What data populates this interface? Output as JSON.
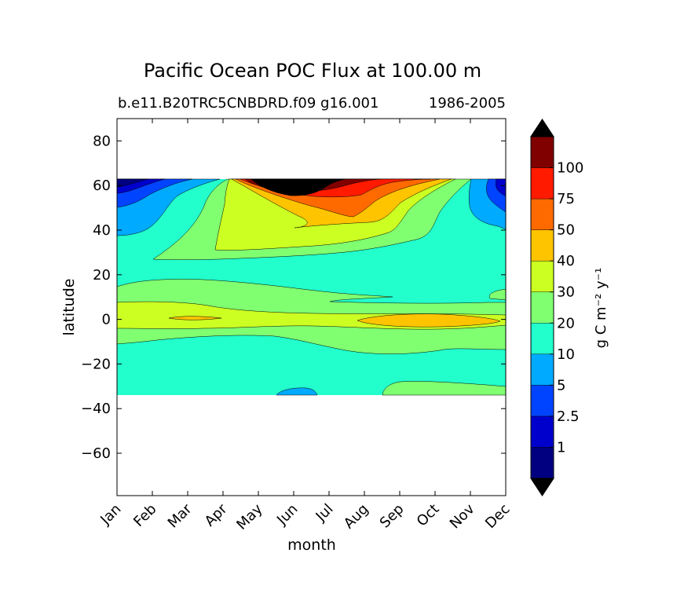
{
  "chart_data": {
    "type": "contourf",
    "title": "Pacific Ocean POC Flux at 100.00 m",
    "subtitle_left": "b.e11.B20TRC5CNBDRD.f09 g16.001",
    "subtitle_right": "1986-2005",
    "xlabel": "month",
    "ylabel": "latitude",
    "x_ticks": [
      "Jan",
      "Feb",
      "Mar",
      "Apr",
      "May",
      "Jun",
      "Jul",
      "Aug",
      "Sep",
      "Oct",
      "Nov",
      "Dec"
    ],
    "xlim": [
      0,
      11
    ],
    "y_ticks": [
      80,
      60,
      40,
      20,
      0,
      -20,
      -40,
      -60
    ],
    "y_tick_labels": [
      "80",
      "60",
      "40",
      "20",
      "0",
      "−20",
      "−40",
      "−60"
    ],
    "ylim": [
      -79,
      90
    ],
    "data_lat_range": [
      -34,
      63
    ],
    "colorbar": {
      "label": "g C m⁻² y⁻¹",
      "levels": [
        1,
        2.5,
        5,
        10,
        20,
        30,
        40,
        50,
        75,
        100
      ],
      "tick_labels": [
        "1",
        "2.5",
        "5",
        "10",
        "20",
        "30",
        "40",
        "50",
        "75",
        "100"
      ],
      "colors": [
        "#000080",
        "#0000cd",
        "#0044ff",
        "#00aaff",
        "#22ffcc",
        "#80ff70",
        "#ccff22",
        "#ffc400",
        "#ff6a00",
        "#ff1a00",
        "#800000"
      ],
      "extend_low_color": "#000000",
      "extend_high_color": "#000000"
    },
    "regions": [
      {
        "name": "tropics-20",
        "lon_months": [
          0,
          11
        ],
        "lat": [
          -5,
          17
        ],
        "level": 20
      },
      {
        "name": "equatorial-30",
        "lon_months": [
          0,
          11
        ],
        "lat": [
          -1,
          9
        ],
        "level": 30
      },
      {
        "name": "equatorial-40-mar",
        "month": 2.0,
        "lat": 0,
        "level": 40
      },
      {
        "name": "equatorial-40-sep-oct",
        "month_range": [
          6.6,
          10.8
        ],
        "lat": 0,
        "level": 40
      },
      {
        "name": "south-20",
        "month_range": [
          7.5,
          11
        ],
        "lat": [
          -34,
          -28
        ],
        "level": 20
      },
      {
        "name": "south-5",
        "month_range": [
          4.5,
          5.7
        ],
        "lat": [
          -34,
          -31
        ],
        "level": 5
      },
      {
        "name": "north-20",
        "month_range": [
          1.2,
          9.5
        ],
        "lat": [
          27,
          63
        ],
        "level": 20
      },
      {
        "name": "north-30",
        "month_range": [
          2.8,
          8.8
        ],
        "lat": [
          29,
          63
        ],
        "level": 30
      },
      {
        "name": "north-40",
        "month_range": [
          3.0,
          8.2
        ],
        "lat": [
          40,
          63
        ],
        "level": 40
      },
      {
        "name": "north-50",
        "month_range": [
          3.2,
          7.7
        ],
        "lat": [
          46,
          63
        ],
        "level": 50
      },
      {
        "name": "north-75",
        "month_range": [
          3.5,
          7.0
        ],
        "lat": [
          52,
          63
        ],
        "level": 75
      },
      {
        "name": "north-100",
        "month_range": [
          4.0,
          6.5
        ],
        "lat": [
          55,
          63
        ],
        "level": 100
      },
      {
        "name": "north-peak",
        "month_range": [
          4.3,
          5.7
        ],
        "lat": [
          55,
          63
        ],
        "level": "over"
      },
      {
        "name": "nw-subpolar",
        "month_range": [
          0,
          1.8
        ],
        "lat": [
          38,
          63
        ],
        "levels": [
          10,
          5,
          2.5,
          1
        ]
      },
      {
        "name": "ne-subpolar",
        "month_range": [
          9.6,
          11
        ],
        "lat": [
          39,
          63
        ],
        "levels": [
          10,
          5,
          2.5,
          1
        ]
      }
    ]
  }
}
